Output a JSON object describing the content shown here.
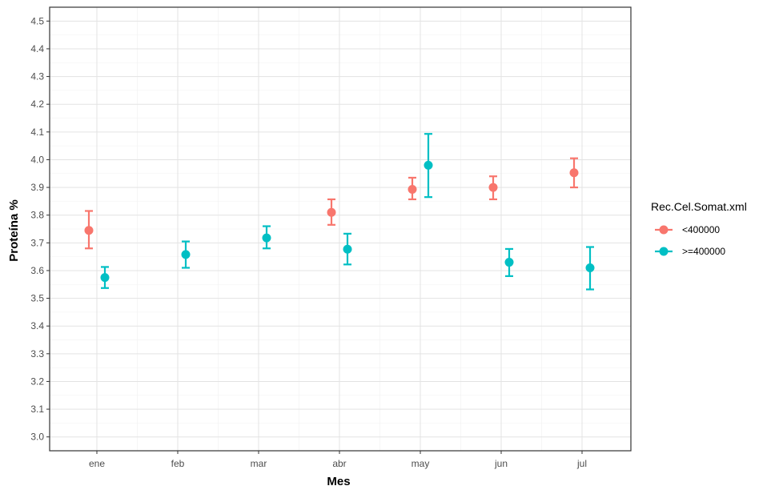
{
  "chart_data": {
    "type": "scatter",
    "xlabel": "Mes",
    "ylabel": "Proteína %",
    "categories": [
      "ene",
      "feb",
      "mar",
      "abr",
      "may",
      "jun",
      "jul"
    ],
    "ylim": [
      2.95,
      4.55
    ],
    "yticks": [
      "3.0",
      "3.1",
      "3.2",
      "3.3",
      "3.4",
      "3.5",
      "3.6",
      "3.7",
      "3.8",
      "3.9",
      "4.0",
      "4.1",
      "4.2",
      "4.3",
      "4.4",
      "4.5"
    ],
    "grid": true,
    "legend": {
      "title": "Rec.Cel.Somat.xml",
      "position": "right"
    },
    "series": [
      {
        "name": "<400000",
        "color": "#F8766D",
        "points": [
          {
            "x": "ene",
            "y": 3.745,
            "lower": 3.68,
            "upper": 3.815
          },
          {
            "x": "abr",
            "y": 3.81,
            "lower": 3.765,
            "upper": 3.857
          },
          {
            "x": "may",
            "y": 3.893,
            "lower": 3.857,
            "upper": 3.935
          },
          {
            "x": "jun",
            "y": 3.9,
            "lower": 3.857,
            "upper": 3.94
          },
          {
            "x": "jul",
            "y": 3.953,
            "lower": 3.9,
            "upper": 4.005
          }
        ]
      },
      {
        "name": ">=400000",
        "color": "#00BFC4",
        "points": [
          {
            "x": "ene",
            "y": 3.575,
            "lower": 3.537,
            "upper": 3.613
          },
          {
            "x": "feb",
            "y": 3.658,
            "lower": 3.61,
            "upper": 3.705
          },
          {
            "x": "mar",
            "y": 3.718,
            "lower": 3.68,
            "upper": 3.76
          },
          {
            "x": "abr",
            "y": 3.677,
            "lower": 3.622,
            "upper": 3.733
          },
          {
            "x": "may",
            "y": 3.98,
            "lower": 3.865,
            "upper": 4.093
          },
          {
            "x": "jun",
            "y": 3.63,
            "lower": 3.58,
            "upper": 3.678
          },
          {
            "x": "jul",
            "y": 3.61,
            "lower": 3.532,
            "upper": 3.685
          }
        ]
      }
    ]
  }
}
